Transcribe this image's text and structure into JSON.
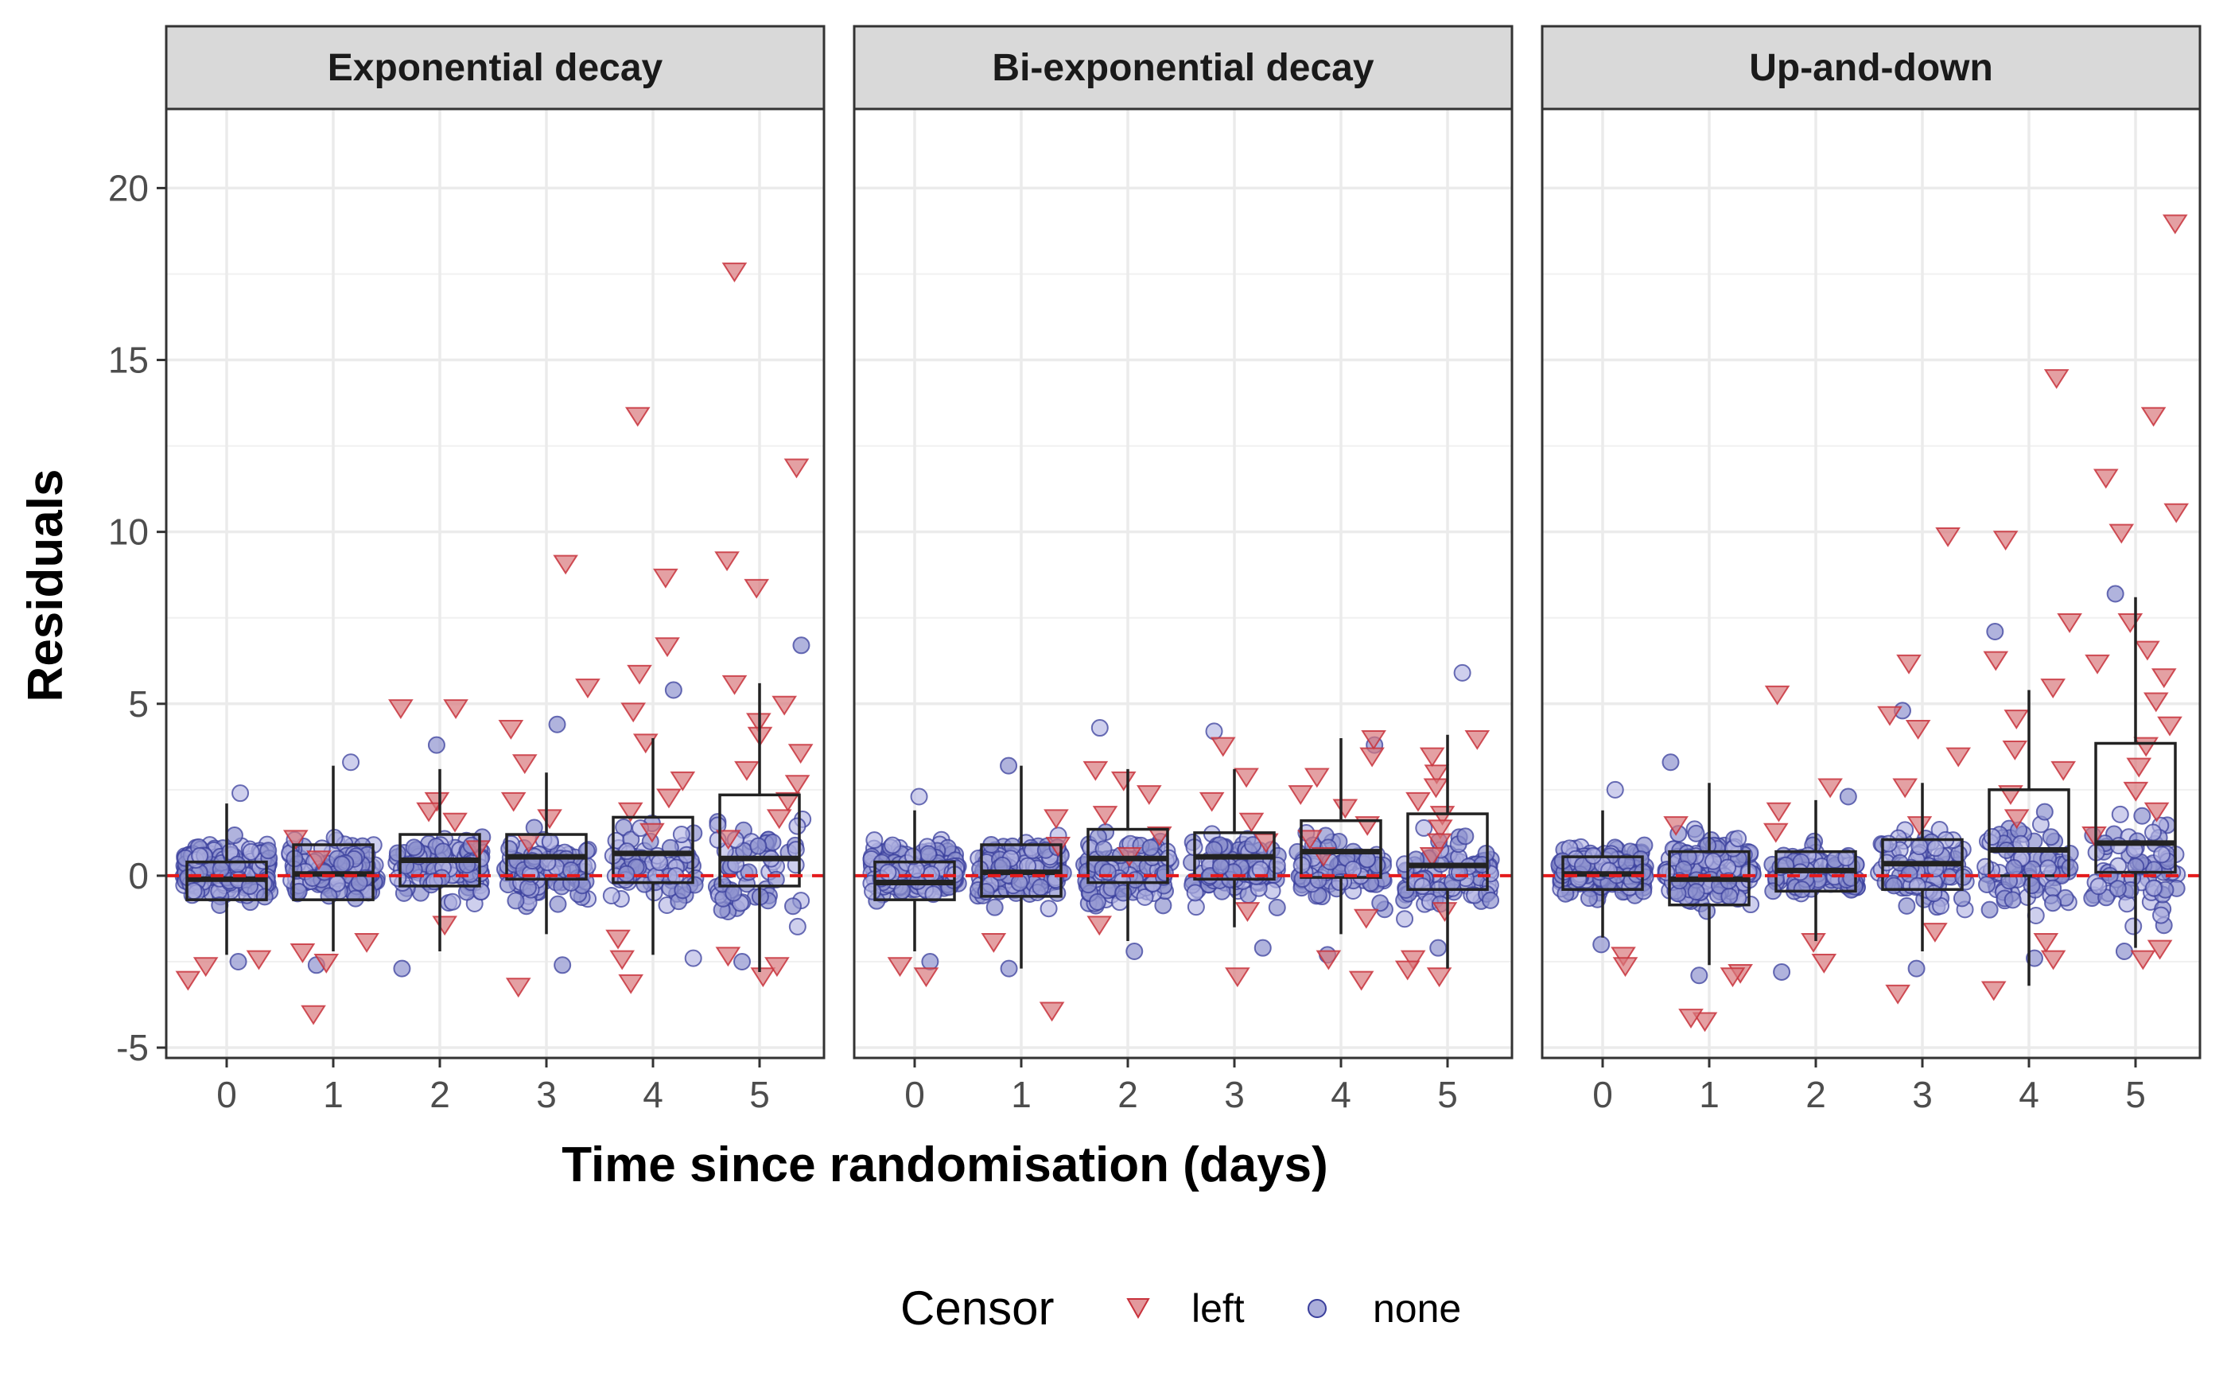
{
  "chart_data": {
    "type": "box",
    "xlabel": "Time since randomisation (days)",
    "ylabel": "Residuals",
    "ylim": [
      -5.3,
      22.3
    ],
    "y_ticks": [
      -5,
      0,
      5,
      10,
      15,
      20
    ],
    "x_ticks": [
      0,
      1,
      2,
      3,
      4,
      5
    ],
    "reference_line": {
      "y": 0,
      "color": "#e41a1c",
      "style": "dashed"
    },
    "grid": true,
    "legend": {
      "title": "Censor",
      "position": "bottom",
      "entries": [
        {
          "label": "left",
          "shape": "triangle-down",
          "color": "#d9777c"
        },
        {
          "label": "none",
          "shape": "circle",
          "color": "#8f93cf"
        }
      ]
    },
    "colors": {
      "left_point": "#d9777c",
      "left_dark": "#c8323c",
      "none_point": "#8f93cf",
      "none_dark": "#3a3f9c",
      "strip_bg": "#d9d9d9",
      "refline": "#e41a1c"
    },
    "panels": [
      {
        "title": "Exponential decay",
        "boxes": [
          {
            "x": 0,
            "whisker_low": -2.3,
            "q1": -0.7,
            "median": -0.1,
            "q3": 0.4,
            "whisker_high": 2.1
          },
          {
            "x": 1,
            "whisker_low": -2.2,
            "q1": -0.7,
            "median": 0.05,
            "q3": 0.9,
            "whisker_high": 3.2
          },
          {
            "x": 2,
            "whisker_low": -2.2,
            "q1": -0.3,
            "median": 0.45,
            "q3": 1.2,
            "whisker_high": 3.1
          },
          {
            "x": 3,
            "whisker_low": -1.7,
            "q1": -0.1,
            "median": 0.55,
            "q3": 1.2,
            "whisker_high": 3.0
          },
          {
            "x": 4,
            "whisker_low": -2.3,
            "q1": -0.2,
            "median": 0.65,
            "q3": 1.7,
            "whisker_high": 4.0
          },
          {
            "x": 5,
            "whisker_low": -2.8,
            "q1": -0.3,
            "median": 0.5,
            "q3": 2.35,
            "whisker_high": 5.6
          }
        ],
        "none_clouds": [
          {
            "x": 0,
            "low": -2.5,
            "high": 2.4,
            "n": 220
          },
          {
            "x": 1,
            "low": -2.6,
            "high": 3.3,
            "n": 140
          },
          {
            "x": 2,
            "low": -2.7,
            "high": 3.8,
            "n": 110
          },
          {
            "x": 3,
            "low": -2.6,
            "high": 4.4,
            "n": 90
          },
          {
            "x": 4,
            "low": -2.4,
            "high": 5.4,
            "n": 70
          },
          {
            "x": 5,
            "low": -2.5,
            "high": 6.7,
            "n": 60
          }
        ],
        "left_points": [
          {
            "x": 0,
            "y": -2.6
          },
          {
            "x": 0,
            "y": -3.0
          },
          {
            "x": 0,
            "y": -2.4
          },
          {
            "x": 1,
            "y": -4.0
          },
          {
            "x": 1,
            "y": -2.5
          },
          {
            "x": 1,
            "y": -2.2
          },
          {
            "x": 1,
            "y": -1.9
          },
          {
            "x": 1,
            "y": 1.1
          },
          {
            "x": 1,
            "y": 0.5
          },
          {
            "x": 2,
            "y": 4.9
          },
          {
            "x": 2,
            "y": 4.9
          },
          {
            "x": 2,
            "y": 2.2
          },
          {
            "x": 2,
            "y": 1.6
          },
          {
            "x": 2,
            "y": -1.4
          },
          {
            "x": 2,
            "y": 0.8
          },
          {
            "x": 2,
            "y": 1.9
          },
          {
            "x": 3,
            "y": 9.1
          },
          {
            "x": 3,
            "y": 5.5
          },
          {
            "x": 3,
            "y": 4.3
          },
          {
            "x": 3,
            "y": 3.3
          },
          {
            "x": 3,
            "y": 2.2
          },
          {
            "x": 3,
            "y": -3.2
          },
          {
            "x": 3,
            "y": 1.0
          },
          {
            "x": 3,
            "y": 1.7
          },
          {
            "x": 4,
            "y": 13.4
          },
          {
            "x": 4,
            "y": 8.7
          },
          {
            "x": 4,
            "y": 6.7
          },
          {
            "x": 4,
            "y": 5.9
          },
          {
            "x": 4,
            "y": 4.8
          },
          {
            "x": 4,
            "y": 3.9
          },
          {
            "x": 4,
            "y": 2.8
          },
          {
            "x": 4,
            "y": 2.3
          },
          {
            "x": 4,
            "y": 1.9
          },
          {
            "x": 4,
            "y": 1.3
          },
          {
            "x": 4,
            "y": -1.8
          },
          {
            "x": 4,
            "y": -2.4
          },
          {
            "x": 4,
            "y": -3.1
          },
          {
            "x": 5,
            "y": 17.6
          },
          {
            "x": 5,
            "y": 11.9
          },
          {
            "x": 5,
            "y": 9.2
          },
          {
            "x": 5,
            "y": 8.4
          },
          {
            "x": 5,
            "y": 5.6
          },
          {
            "x": 5,
            "y": 5.0
          },
          {
            "x": 5,
            "y": 4.5
          },
          {
            "x": 5,
            "y": 4.1
          },
          {
            "x": 5,
            "y": 3.6
          },
          {
            "x": 5,
            "y": 3.1
          },
          {
            "x": 5,
            "y": 2.7
          },
          {
            "x": 5,
            "y": 2.2
          },
          {
            "x": 5,
            "y": 1.7
          },
          {
            "x": 5,
            "y": 1.1
          },
          {
            "x": 5,
            "y": -2.3
          },
          {
            "x": 5,
            "y": -2.9
          },
          {
            "x": 5,
            "y": -2.6
          }
        ]
      },
      {
        "title": "Bi-exponential decay",
        "boxes": [
          {
            "x": 0,
            "whisker_low": -2.2,
            "q1": -0.7,
            "median": -0.2,
            "q3": 0.4,
            "whisker_high": 1.9
          },
          {
            "x": 1,
            "whisker_low": -2.7,
            "q1": -0.6,
            "median": 0.1,
            "q3": 0.9,
            "whisker_high": 3.2
          },
          {
            "x": 2,
            "whisker_low": -1.9,
            "q1": -0.2,
            "median": 0.5,
            "q3": 1.35,
            "whisker_high": 3.1
          },
          {
            "x": 3,
            "whisker_low": -1.5,
            "q1": -0.1,
            "median": 0.55,
            "q3": 1.25,
            "whisker_high": 3.1
          },
          {
            "x": 4,
            "whisker_low": -1.7,
            "q1": -0.05,
            "median": 0.7,
            "q3": 1.6,
            "whisker_high": 4.0
          },
          {
            "x": 5,
            "whisker_low": -2.7,
            "q1": -0.4,
            "median": 0.3,
            "q3": 1.8,
            "whisker_high": 4.1
          }
        ],
        "none_clouds": [
          {
            "x": 0,
            "low": -2.5,
            "high": 2.3,
            "n": 240
          },
          {
            "x": 1,
            "low": -2.7,
            "high": 3.2,
            "n": 140
          },
          {
            "x": 2,
            "low": -2.2,
            "high": 4.3,
            "n": 110
          },
          {
            "x": 3,
            "low": -2.1,
            "high": 4.2,
            "n": 100
          },
          {
            "x": 4,
            "low": -2.3,
            "high": 3.8,
            "n": 90
          },
          {
            "x": 5,
            "low": -2.1,
            "high": 5.9,
            "n": 80
          }
        ],
        "left_points": [
          {
            "x": 0,
            "y": -2.6
          },
          {
            "x": 0,
            "y": -2.9
          },
          {
            "x": 1,
            "y": -3.9
          },
          {
            "x": 1,
            "y": -1.9
          },
          {
            "x": 1,
            "y": 1.7
          },
          {
            "x": 1,
            "y": 0.9
          },
          {
            "x": 2,
            "y": 3.1
          },
          {
            "x": 2,
            "y": 2.8
          },
          {
            "x": 2,
            "y": 2.4
          },
          {
            "x": 2,
            "y": 1.8
          },
          {
            "x": 2,
            "y": 1.2
          },
          {
            "x": 2,
            "y": 0.6
          },
          {
            "x": 2,
            "y": -1.4
          },
          {
            "x": 3,
            "y": 3.8
          },
          {
            "x": 3,
            "y": 2.9
          },
          {
            "x": 3,
            "y": 2.2
          },
          {
            "x": 3,
            "y": 1.6
          },
          {
            "x": 3,
            "y": 1.0
          },
          {
            "x": 3,
            "y": -2.9
          },
          {
            "x": 3,
            "y": -1.0
          },
          {
            "x": 4,
            "y": 4.0
          },
          {
            "x": 4,
            "y": 3.5
          },
          {
            "x": 4,
            "y": 2.9
          },
          {
            "x": 4,
            "y": 2.4
          },
          {
            "x": 4,
            "y": 2.0
          },
          {
            "x": 4,
            "y": 1.5
          },
          {
            "x": 4,
            "y": 1.1
          },
          {
            "x": 4,
            "y": 0.6
          },
          {
            "x": 4,
            "y": -2.4
          },
          {
            "x": 4,
            "y": -3.0
          },
          {
            "x": 4,
            "y": -1.2
          },
          {
            "x": 5,
            "y": 4.0
          },
          {
            "x": 5,
            "y": 3.5
          },
          {
            "x": 5,
            "y": 3.0
          },
          {
            "x": 5,
            "y": 2.6
          },
          {
            "x": 5,
            "y": 2.2
          },
          {
            "x": 5,
            "y": 1.8
          },
          {
            "x": 5,
            "y": 1.4
          },
          {
            "x": 5,
            "y": 1.0
          },
          {
            "x": 5,
            "y": 0.6
          },
          {
            "x": 5,
            "y": -1.0
          },
          {
            "x": 5,
            "y": -2.4
          },
          {
            "x": 5,
            "y": -2.9
          },
          {
            "x": 5,
            "y": -2.7
          }
        ]
      },
      {
        "title": "Up-and-down",
        "boxes": [
          {
            "x": 0,
            "whisker_low": -1.8,
            "q1": -0.4,
            "median": 0.05,
            "q3": 0.55,
            "whisker_high": 1.9
          },
          {
            "x": 1,
            "whisker_low": -2.6,
            "q1": -0.85,
            "median": -0.1,
            "q3": 0.7,
            "whisker_high": 2.7
          },
          {
            "x": 2,
            "whisker_low": -1.9,
            "q1": -0.45,
            "median": 0.15,
            "q3": 0.7,
            "whisker_high": 2.2
          },
          {
            "x": 3,
            "whisker_low": -2.2,
            "q1": -0.4,
            "median": 0.35,
            "q3": 1.05,
            "whisker_high": 2.7
          },
          {
            "x": 4,
            "whisker_low": -3.2,
            "q1": 0.0,
            "median": 0.75,
            "q3": 2.5,
            "whisker_high": 5.4
          },
          {
            "x": 5,
            "whisker_low": -2.1,
            "q1": 0.1,
            "median": 0.95,
            "q3": 3.85,
            "whisker_high": 8.1
          }
        ],
        "none_clouds": [
          {
            "x": 0,
            "low": -2.0,
            "high": 2.5,
            "n": 200
          },
          {
            "x": 1,
            "low": -2.9,
            "high": 3.3,
            "n": 150
          },
          {
            "x": 2,
            "low": -2.8,
            "high": 2.3,
            "n": 110
          },
          {
            "x": 3,
            "low": -2.7,
            "high": 4.8,
            "n": 90
          },
          {
            "x": 4,
            "low": -2.4,
            "high": 7.1,
            "n": 80
          },
          {
            "x": 5,
            "low": -2.2,
            "high": 8.2,
            "n": 70
          }
        ],
        "left_points": [
          {
            "x": 0,
            "y": -2.3
          },
          {
            "x": 0,
            "y": -2.6
          },
          {
            "x": 1,
            "y": -4.2
          },
          {
            "x": 1,
            "y": -4.1
          },
          {
            "x": 1,
            "y": -2.8
          },
          {
            "x": 1,
            "y": -2.9
          },
          {
            "x": 1,
            "y": 1.5
          },
          {
            "x": 2,
            "y": 5.3
          },
          {
            "x": 2,
            "y": 2.6
          },
          {
            "x": 2,
            "y": 1.9
          },
          {
            "x": 2,
            "y": 1.3
          },
          {
            "x": 2,
            "y": -2.5
          },
          {
            "x": 2,
            "y": -1.9
          },
          {
            "x": 3,
            "y": 9.9
          },
          {
            "x": 3,
            "y": 6.2
          },
          {
            "x": 3,
            "y": 4.7
          },
          {
            "x": 3,
            "y": 4.3
          },
          {
            "x": 3,
            "y": 3.5
          },
          {
            "x": 3,
            "y": 2.6
          },
          {
            "x": 3,
            "y": 1.5
          },
          {
            "x": 3,
            "y": -1.6
          },
          {
            "x": 3,
            "y": -3.4
          },
          {
            "x": 4,
            "y": 14.5
          },
          {
            "x": 4,
            "y": 9.8
          },
          {
            "x": 4,
            "y": 7.4
          },
          {
            "x": 4,
            "y": 6.3
          },
          {
            "x": 4,
            "y": 5.5
          },
          {
            "x": 4,
            "y": 4.6
          },
          {
            "x": 4,
            "y": 3.7
          },
          {
            "x": 4,
            "y": 3.1
          },
          {
            "x": 4,
            "y": 2.4
          },
          {
            "x": 4,
            "y": 1.7
          },
          {
            "x": 4,
            "y": -1.9
          },
          {
            "x": 4,
            "y": -2.4
          },
          {
            "x": 4,
            "y": -3.3
          },
          {
            "x": 5,
            "y": 19.0
          },
          {
            "x": 5,
            "y": 13.4
          },
          {
            "x": 5,
            "y": 11.6
          },
          {
            "x": 5,
            "y": 10.6
          },
          {
            "x": 5,
            "y": 10.0
          },
          {
            "x": 5,
            "y": 7.4
          },
          {
            "x": 5,
            "y": 6.6
          },
          {
            "x": 5,
            "y": 6.2
          },
          {
            "x": 5,
            "y": 5.8
          },
          {
            "x": 5,
            "y": 5.1
          },
          {
            "x": 5,
            "y": 4.4
          },
          {
            "x": 5,
            "y": 3.8
          },
          {
            "x": 5,
            "y": 3.2
          },
          {
            "x": 5,
            "y": 2.5
          },
          {
            "x": 5,
            "y": 1.9
          },
          {
            "x": 5,
            "y": 1.2
          },
          {
            "x": 5,
            "y": -2.1
          },
          {
            "x": 5,
            "y": -2.4
          }
        ]
      }
    ]
  }
}
